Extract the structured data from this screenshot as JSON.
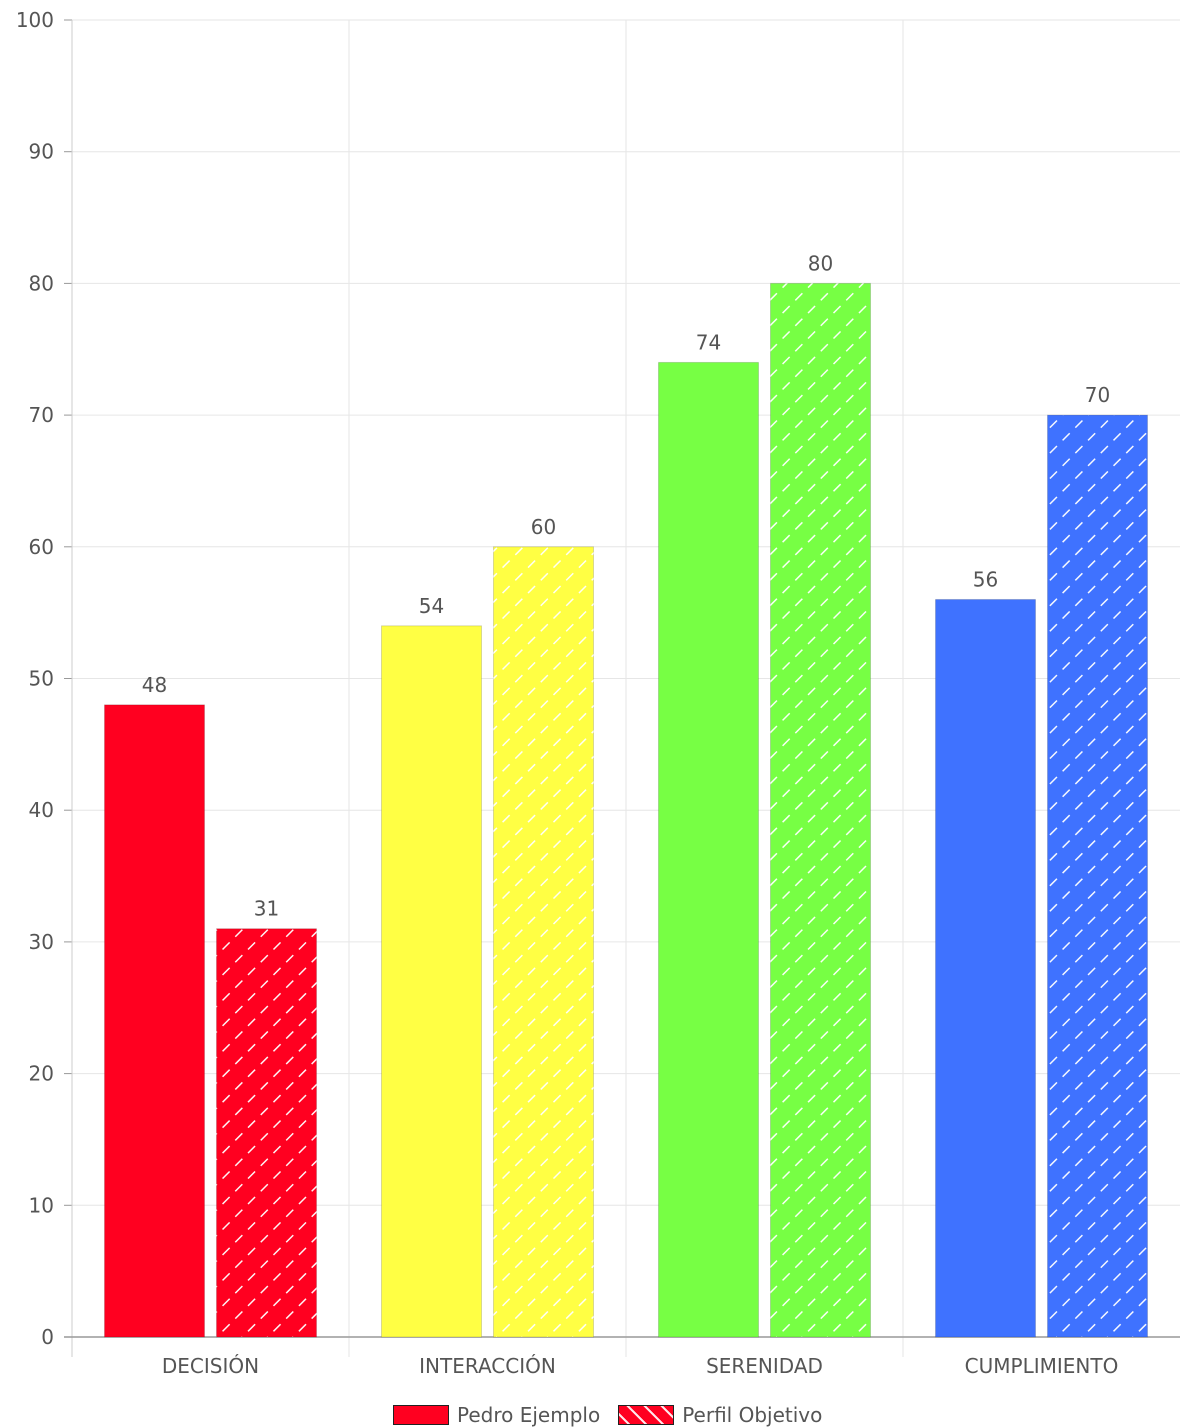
{
  "chart_data": {
    "type": "bar",
    "categories": [
      "DECISIÓN",
      "INTERACCIÓN",
      "SERENIDAD",
      "CUMPLIMIENTO"
    ],
    "category_colors": [
      "#ff0020",
      "#ffff44",
      "#77ff44",
      "#3f72ff"
    ],
    "series": [
      {
        "name": "Pedro Ejemplo",
        "values": [
          48,
          54,
          74,
          56
        ],
        "pattern": "solid"
      },
      {
        "name": "Perfil Objetivo",
        "values": [
          31,
          60,
          80,
          70
        ],
        "pattern": "hatched"
      }
    ],
    "ylim": [
      0,
      100
    ],
    "yticks": [
      "0",
      "10",
      "20",
      "30",
      "40",
      "50",
      "60",
      "70",
      "80",
      "90",
      "100"
    ],
    "data_labels": true,
    "grid": true,
    "legend_position": "bottom-center"
  }
}
